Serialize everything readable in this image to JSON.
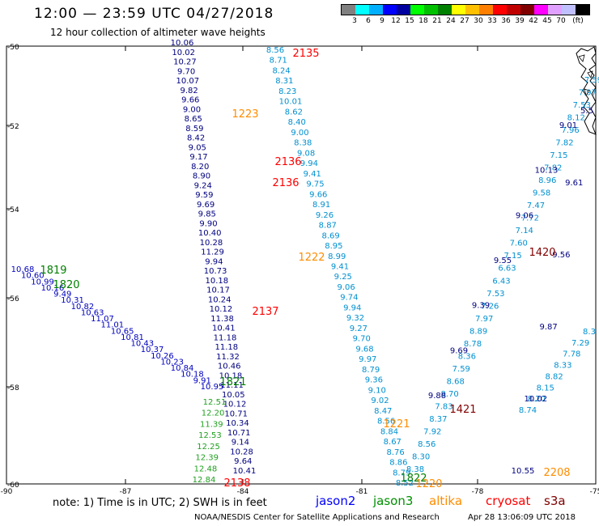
{
  "header": {
    "title": "12:00 — 23:59 UTC 04/27/2018",
    "subtitle": "12 hour collection of altimeter wave heights"
  },
  "scale": {
    "colors": [
      "#808080",
      "#00ffff",
      "#00b0ff",
      "#0000ff",
      "#0000a0",
      "#00ff00",
      "#00c000",
      "#008000",
      "#ffff00",
      "#ffc000",
      "#ff8000",
      "#ff0000",
      "#c00000",
      "#800000",
      "#ff00ff",
      "#e0a0ff",
      "#c0c0ff",
      "#000000"
    ],
    "labels": [
      "3",
      "6",
      "9",
      "12",
      "15",
      "18",
      "21",
      "24",
      "27",
      "30",
      "33",
      "36",
      "39",
      "42",
      "45",
      "70",
      "(ft)"
    ]
  },
  "axes": {
    "lat_labels": [
      "-50",
      "-52",
      "-54",
      "-56",
      "-58",
      "-60"
    ],
    "lon_labels": [
      "-90",
      "-87",
      "-84",
      "-81",
      "-78",
      "-75"
    ]
  },
  "tracks": [
    {
      "color": "#000080",
      "values": [
        "10.06",
        "10.02",
        "10.27",
        "9.70",
        "10.07",
        "9.82",
        "9.66",
        "9.00",
        "8.65",
        "8.59",
        "8.42",
        "9.05",
        "9.17",
        "8.20",
        "8.90",
        "9.24",
        "9.59",
        "9.69",
        "9.85",
        "9.90",
        "10.40",
        "10.28",
        "11.29",
        "9.94",
        "10.73",
        "10.18",
        "10.17",
        "10.24",
        "10.12",
        "11.38",
        "10.41",
        "11.18",
        "11.18",
        "11.32",
        "10.46",
        "10.18",
        "11.11",
        "10.05",
        "10.12",
        "10.71",
        "10.34",
        "10.71",
        "9.14",
        "10.28",
        "9.64",
        "10.41"
      ]
    },
    {
      "color": "#0090d0",
      "values": [
        "8.56",
        "8.71",
        "8.24",
        "8.31",
        "8.23",
        "10.01",
        "8.62",
        "8.40",
        "9.00",
        "8.38",
        "9.08",
        "9.94",
        "9.41",
        "9.75",
        "9.66",
        "8.91",
        "9.26",
        "8.87",
        "8.69",
        "8.95",
        "8.99",
        "9.41",
        "9.25",
        "9.06",
        "9.74",
        "9.94",
        "9.32",
        "9.27",
        "9.70",
        "9.68",
        "9.97",
        "8.79",
        "9.36",
        "9.10",
        "9.02",
        "8.47",
        "8.56",
        "8.84",
        "8.67",
        "8.76",
        "8.86",
        "8.79",
        "8.52"
      ]
    },
    {
      "color": "#0000c0",
      "values": [
        "10.68",
        "10.60",
        "10.99",
        "10.16",
        "9.49",
        "10.31",
        "10.82",
        "10.63",
        "11.07",
        "11.01",
        "10.65",
        "10.81",
        "10.43",
        "10.37",
        "10.26",
        "10.23",
        "10.84",
        "10.18",
        "9.91",
        "10.95"
      ]
    },
    {
      "color": "#20a020",
      "values": [
        "12.51",
        "12.20",
        "11.39",
        "12.53",
        "12.25",
        "12.39",
        "12.48",
        "12.84"
      ]
    },
    {
      "color": "#0090d0",
      "values": [
        "7.59",
        "7.97",
        "7.53",
        "8.12",
        "7.96",
        "7.82",
        "7.15",
        "7.82",
        "8.96",
        "9.58",
        "7.47",
        "7.72",
        "7.14",
        "7.60",
        "7.15",
        "6.63",
        "6.43",
        "7.53",
        "7.26",
        "7.97",
        "8.89",
        "8.78",
        "8.36",
        "7.59",
        "8.68",
        "8.70",
        "7.83",
        "8.37",
        "7.92",
        "8.56",
        "8.30",
        "8.38"
      ]
    },
    {
      "color": "#000080",
      "values": [
        "9.01",
        "10.13",
        "9.06",
        "9.55",
        "9.39",
        "9.69",
        "9.88"
      ]
    },
    {
      "color": "#0090d0",
      "values": [
        "8.3",
        "7.29",
        "7.78",
        "8.33",
        "8.82",
        "8.15",
        "8.20",
        "8.74"
      ]
    },
    {
      "color": "#000080",
      "values": [
        "5.5",
        "9.61",
        "9.56",
        "9.87",
        "10.02",
        "10.55"
      ]
    }
  ],
  "labels": [
    {
      "text": "2135",
      "color": "#ff0000"
    },
    {
      "text": "1223",
      "color": "#ff8c00"
    },
    {
      "text": "2136",
      "color": "#ff0000"
    },
    {
      "text": "2136",
      "color": "#ff0000"
    },
    {
      "text": "1222",
      "color": "#ff8c00"
    },
    {
      "text": "2137",
      "color": "#ff0000"
    },
    {
      "text": "1819",
      "color": "#008000"
    },
    {
      "text": "1820",
      "color": "#008000"
    },
    {
      "text": "1821",
      "color": "#008000"
    },
    {
      "text": "2138",
      "color": "#ff0000"
    },
    {
      "text": "1221",
      "color": "#ff8c00"
    },
    {
      "text": "1822",
      "color": "#008000"
    },
    {
      "text": "1220",
      "color": "#ff8c00"
    },
    {
      "text": "1420",
      "color": "#800000"
    },
    {
      "text": "1421",
      "color": "#800000"
    },
    {
      "text": "2208",
      "color": "#ff8c00"
    }
  ],
  "legend": {
    "note": "note: 1) Time is in UTC; 2) SWH is in feet",
    "satellites": [
      {
        "name": "jason2",
        "color": "#0000ff"
      },
      {
        "name": "jason3",
        "color": "#009000"
      },
      {
        "name": "altika",
        "color": "#ff8c00"
      },
      {
        "name": "cryosat",
        "color": "#ff0000"
      },
      {
        "name": "s3a",
        "color": "#800000"
      }
    ]
  },
  "footer": {
    "center": "NOAA/NESDIS Center for Satellite Applications and Research",
    "timestamp": "Apr 28 13:06:09 UTC 2018"
  }
}
